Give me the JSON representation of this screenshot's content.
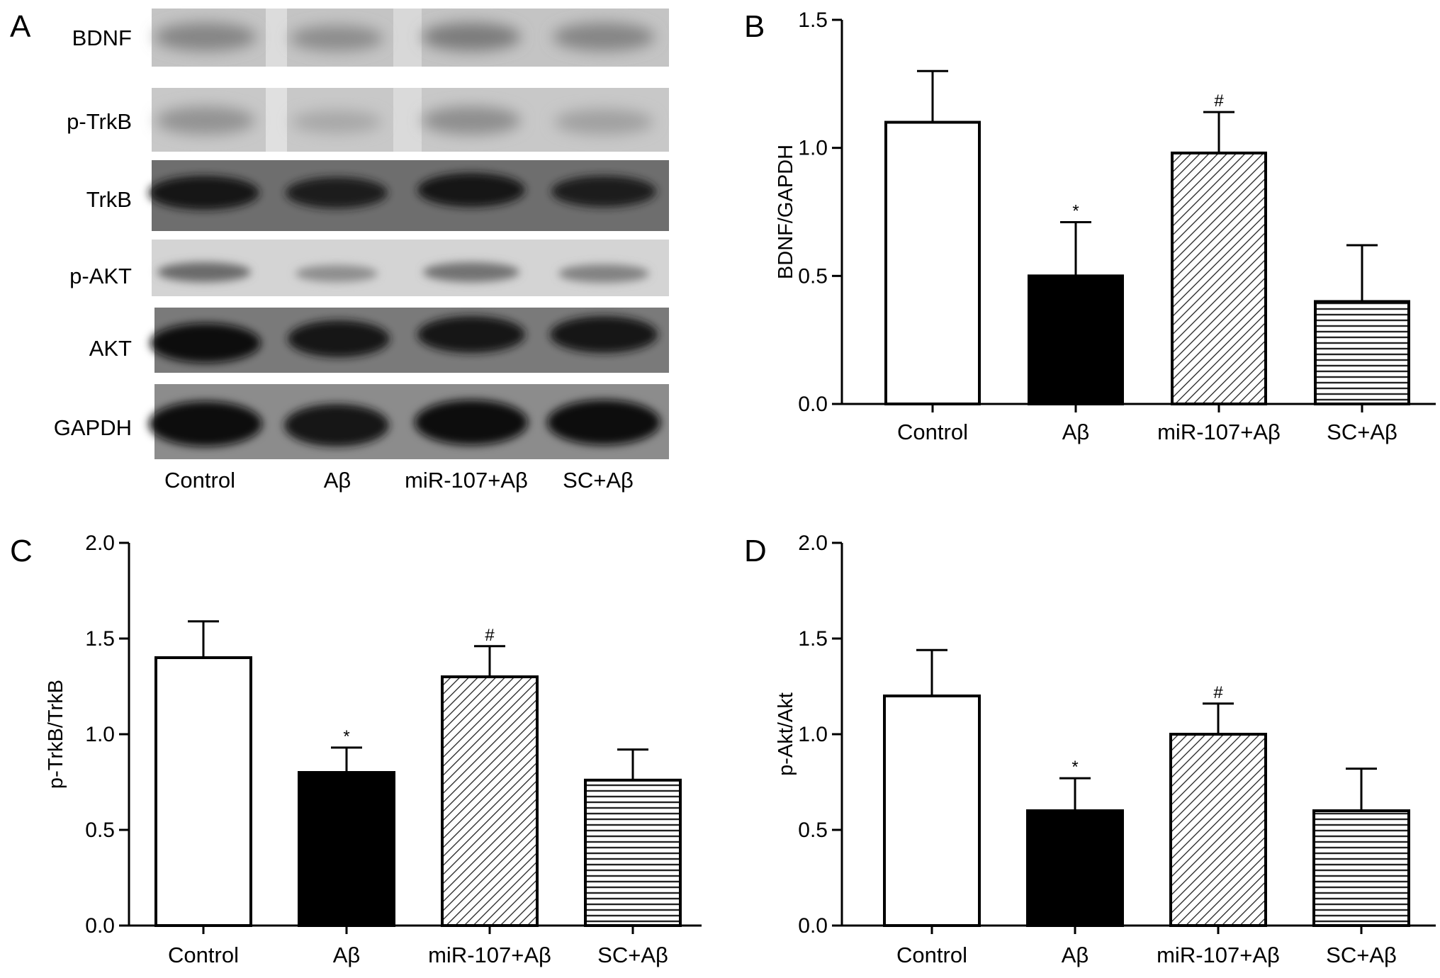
{
  "figure": {
    "panel_letters": [
      "A",
      "B",
      "C",
      "D"
    ]
  },
  "western_blot": {
    "rows": [
      "BDNF",
      "p-TrkB",
      "TrkB",
      "p-AKT",
      "AKT",
      "GAPDH"
    ],
    "lanes": [
      "Control",
      "Aβ",
      "miR-107+Aβ",
      "SC+Aβ"
    ]
  },
  "chart_data": [
    {
      "panel": "B",
      "type": "bar",
      "categories": [
        "Control",
        "Aβ",
        "miR-107+Aβ",
        "SC+Aβ"
      ],
      "values": [
        1.1,
        0.5,
        0.98,
        0.4
      ],
      "errors": [
        0.2,
        0.21,
        0.16,
        0.22
      ],
      "marks": [
        "",
        "*",
        "#",
        ""
      ],
      "title": "",
      "xlabel": "",
      "ylabel": "BDNF/GAPDH",
      "ylim": [
        0,
        1.5
      ],
      "yticks": [
        "0.0",
        "0.5",
        "1.0",
        "1.5"
      ],
      "grid": false,
      "fills": [
        "white",
        "black",
        "diagonal-hatch",
        "horizontal-hatch"
      ]
    },
    {
      "panel": "C",
      "type": "bar",
      "categories": [
        "Control",
        "Aβ",
        "miR-107+Aβ",
        "SC+Aβ"
      ],
      "values": [
        1.4,
        0.8,
        1.3,
        0.76
      ],
      "errors": [
        0.19,
        0.13,
        0.16,
        0.16
      ],
      "marks": [
        "",
        "*",
        "#",
        ""
      ],
      "title": "",
      "xlabel": "",
      "ylabel": "p-TrkB/TrkB",
      "ylim": [
        0,
        2.0
      ],
      "yticks": [
        "0.0",
        "0.5",
        "1.0",
        "1.5",
        "2.0"
      ],
      "grid": false,
      "fills": [
        "white",
        "black",
        "diagonal-hatch",
        "horizontal-hatch"
      ]
    },
    {
      "panel": "D",
      "type": "bar",
      "categories": [
        "Control",
        "Aβ",
        "miR-107+Aβ",
        "SC+Aβ"
      ],
      "values": [
        1.2,
        0.6,
        1.0,
        0.6
      ],
      "errors": [
        0.24,
        0.17,
        0.16,
        0.22
      ],
      "marks": [
        "",
        "*",
        "#",
        ""
      ],
      "title": "",
      "xlabel": "",
      "ylabel": "p-Akt/Akt",
      "ylim": [
        0,
        2.0
      ],
      "yticks": [
        "0.0",
        "0.5",
        "1.0",
        "1.5",
        "2.0"
      ],
      "grid": false,
      "fills": [
        "white",
        "black",
        "diagonal-hatch",
        "horizontal-hatch"
      ]
    }
  ]
}
